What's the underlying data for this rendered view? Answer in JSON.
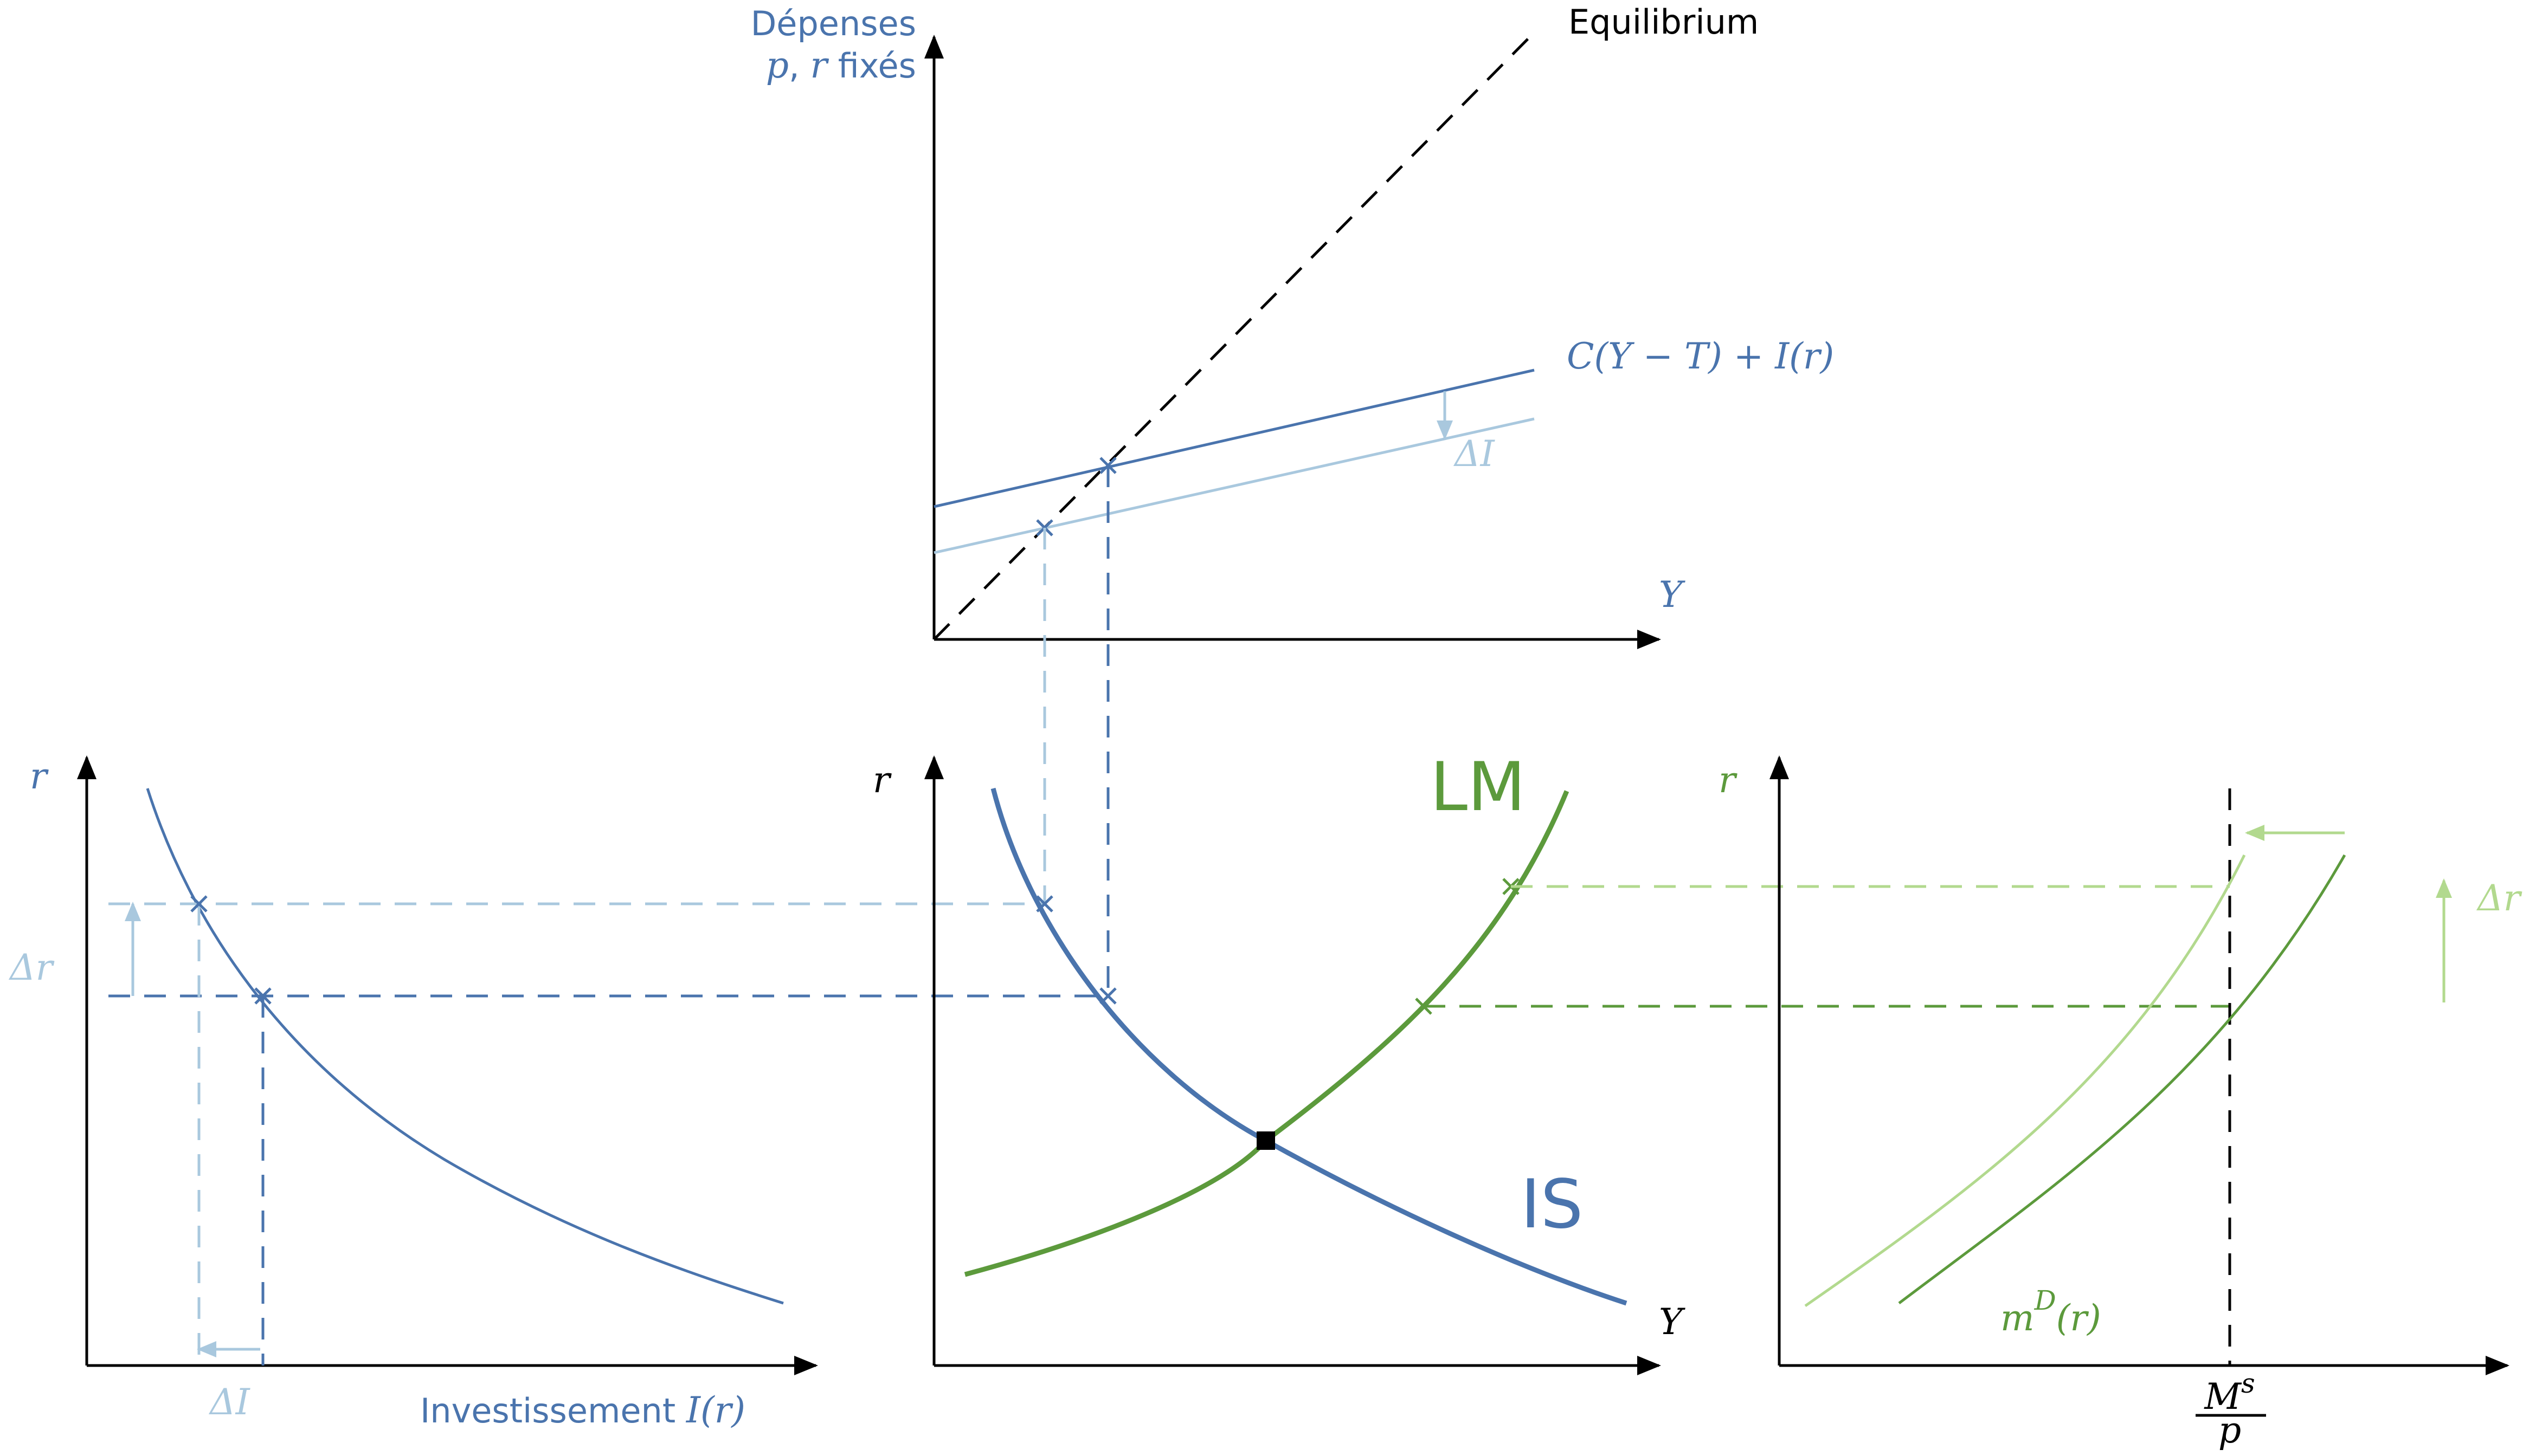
{
  "colors": {
    "blue": "#4a74ad",
    "light_blue": "#a9c8de",
    "green": "#5c9a3c",
    "light_green": "#b2d98e",
    "black": "#000000"
  },
  "top_panel": {
    "ylabel_line1": "Dépenses",
    "ylabel_p": "p",
    "ylabel_comma": ",",
    "ylabel_r": "r",
    "ylabel_fixed": "fixés",
    "equilibrium_label": "Equilibrium",
    "expenditure_label": "C(Y − T) + I(r)",
    "delta_i_label": "ΔI",
    "xlabel": "Y"
  },
  "left_panel": {
    "ylabel": "r",
    "delta_r_label": "Δr",
    "delta_i_label": "ΔI",
    "xlabel_text": "Investissement",
    "xlabel_math": "I(r)"
  },
  "middle_panel": {
    "ylabel": "r",
    "xlabel": "Y",
    "lm_label": "LM",
    "is_label": "IS"
  },
  "right_panel": {
    "ylabel": "r",
    "delta_r_label": "Δr",
    "demand_label_m": "m",
    "demand_label_sup": "D",
    "demand_label_arg": "(r)",
    "supply_num": "M",
    "supply_sup": "s",
    "supply_den": "p"
  }
}
